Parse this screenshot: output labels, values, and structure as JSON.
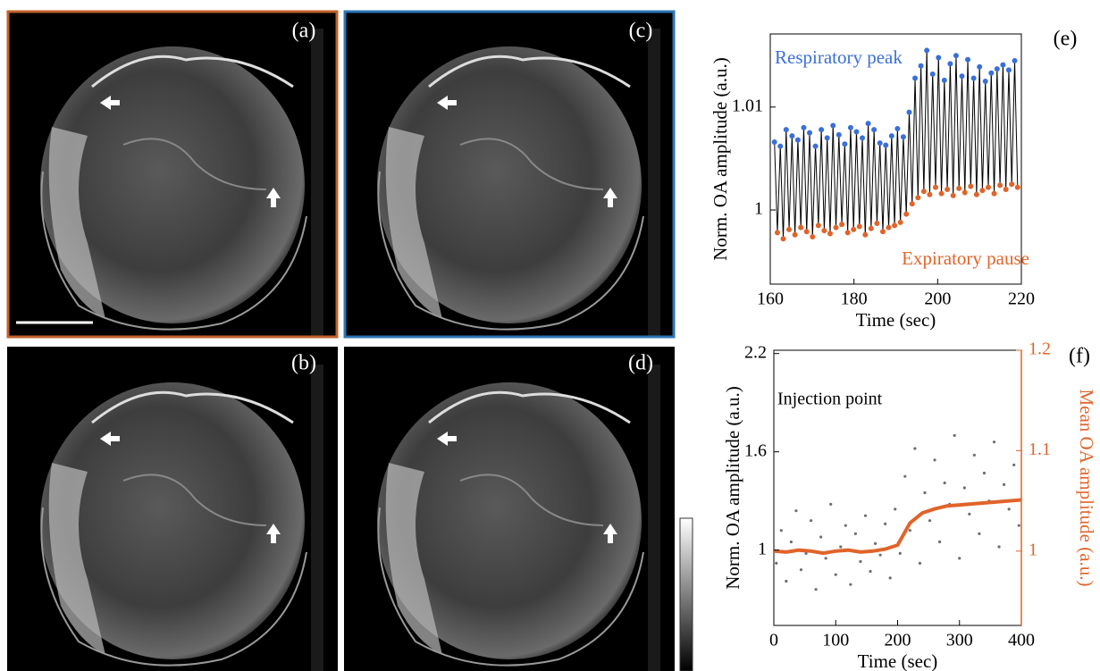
{
  "panels": [
    {
      "label": "(a)"
    },
    {
      "label": "(b)"
    },
    {
      "label": "(c)"
    },
    {
      "label": "(d)"
    }
  ],
  "chart_data": [
    {
      "type": "scatter",
      "panel_label": "(e)",
      "xlabel": "Time (sec)",
      "ylabel": "Norm. OA amplitude (a.u.)",
      "xlim": [
        160,
        220
      ],
      "xticks": [
        160,
        180,
        200,
        220
      ],
      "ylim": [
        0.9928,
        1.0171
      ],
      "yticks": [
        1,
        1.01
      ],
      "line_color": "#000000",
      "series": [
        {
          "name": "Respiratory peak",
          "color": "#3a6fd8",
          "x": [
            161.0,
            162.4,
            163.8,
            165.2,
            166.6,
            168.0,
            169.4,
            170.8,
            172.2,
            173.6,
            175.0,
            176.4,
            177.8,
            179.2,
            180.6,
            182.0,
            183.4,
            184.8,
            186.2,
            187.6,
            189.0,
            190.4,
            191.8,
            193.2,
            194.6,
            196.0,
            197.4,
            198.8,
            200.2,
            201.6,
            203.0,
            204.4,
            205.8,
            207.2,
            208.6,
            210.0,
            211.4,
            212.8,
            214.2,
            215.6,
            217.0,
            218.4
          ],
          "values": [
            1.0066,
            1.0062,
            1.0078,
            1.0072,
            1.0068,
            1.008,
            1.0075,
            1.0062,
            1.0078,
            1.007,
            1.0082,
            1.0073,
            1.0064,
            1.008,
            1.0076,
            1.007,
            1.0084,
            1.0078,
            1.0065,
            1.0063,
            1.0072,
            1.0079,
            1.0071,
            1.0095,
            1.0128,
            1.014,
            1.0155,
            1.0132,
            1.0148,
            1.0126,
            1.0142,
            1.015,
            1.013,
            1.0146,
            1.0128,
            1.0139,
            1.0125,
            1.0133,
            1.0137,
            1.0141,
            1.0136,
            1.0145
          ]
        },
        {
          "name": "Expiratory pause",
          "color": "#e0642a",
          "x": [
            161.7,
            163.1,
            164.5,
            165.9,
            167.3,
            168.7,
            170.1,
            171.5,
            172.9,
            174.3,
            175.7,
            177.1,
            178.5,
            179.9,
            181.3,
            182.7,
            184.1,
            185.5,
            186.9,
            188.3,
            189.7,
            191.1,
            192.5,
            193.9,
            195.3,
            196.7,
            198.1,
            199.5,
            200.9,
            202.3,
            203.7,
            205.1,
            206.5,
            207.9,
            209.3,
            210.7,
            212.1,
            213.5,
            214.9,
            216.3,
            217.7,
            219.1
          ],
          "values": [
            0.9978,
            0.9972,
            0.9981,
            0.9976,
            0.9983,
            0.9979,
            0.9974,
            0.9985,
            0.998,
            0.9977,
            0.9983,
            0.9986,
            0.9978,
            0.9981,
            0.9984,
            0.9976,
            0.9982,
            0.9987,
            0.9979,
            0.9983,
            0.9985,
            0.9988,
            0.9996,
            1.0006,
            1.0012,
            1.0018,
            1.0015,
            1.0022,
            1.0016,
            1.002,
            1.0014,
            1.0021,
            1.0017,
            1.0023,
            1.0015,
            1.0019,
            1.0022,
            1.0016,
            1.0024,
            1.002,
            1.0025,
            1.0022
          ]
        }
      ]
    },
    {
      "type": "scatter",
      "panel_label": "(f)",
      "xlabel": "Time (sec)",
      "ylabel": "Norm. OA amplitude (a.u.)",
      "y2label": "Mean OA amplitude (a.u.)",
      "annotation": "Injection point",
      "xlim": [
        0,
        400
      ],
      "xticks": [
        0,
        100,
        200,
        300,
        400
      ],
      "ylim": [
        0.54,
        2.22
      ],
      "yticks": [
        1,
        1.6,
        2.2
      ],
      "y2lim": [
        0.926,
        1.2
      ],
      "y2ticks": [
        1,
        1.1,
        1.2
      ],
      "y2color": "#e0642a",
      "series": [
        {
          "color": "#6e6e6e",
          "mode": "scatter",
          "x": [
            4,
            12,
            20,
            28,
            36,
            44,
            52,
            60,
            68,
            76,
            84,
            92,
            100,
            108,
            116,
            124,
            132,
            140,
            148,
            156,
            164,
            172,
            180,
            188,
            196,
            204,
            212,
            220,
            228,
            236,
            244,
            252,
            260,
            268,
            276,
            284,
            292,
            300,
            308,
            316,
            324,
            332,
            340,
            348,
            356,
            364,
            372,
            380,
            388,
            396
          ],
          "values": [
            0.92,
            1.12,
            0.81,
            1.05,
            1.24,
            0.88,
            0.98,
            1.18,
            0.76,
            1.08,
            0.95,
            1.28,
            0.85,
            1.02,
            1.15,
            0.79,
            1.1,
            0.93,
            1.21,
            0.87,
            1.04,
            0.97,
            1.16,
            0.83,
            1.25,
            0.98,
            1.45,
            1.12,
            1.62,
            0.92,
            1.35,
            1.18,
            1.55,
            1.05,
            1.41,
            1.28,
            1.7,
            0.95,
            1.38,
            1.22,
            1.58,
            1.1,
            1.47,
            1.3,
            1.66,
            1.02,
            1.4,
            1.25,
            1.52,
            1.15
          ]
        },
        {
          "color": "#e0642a",
          "mode": "line",
          "axis": "y2",
          "x": [
            0,
            20,
            40,
            60,
            80,
            100,
            120,
            140,
            160,
            180,
            200,
            220,
            240,
            260,
            280,
            300,
            320,
            340,
            360,
            380,
            400
          ],
          "values": [
            1.0,
            0.999,
            1.001,
            1.0,
            0.998,
            1.0,
            1.001,
            0.999,
            1.0,
            1.002,
            1.006,
            1.028,
            1.038,
            1.042,
            1.045,
            1.046,
            1.047,
            1.048,
            1.049,
            1.05,
            1.051
          ]
        }
      ]
    }
  ]
}
